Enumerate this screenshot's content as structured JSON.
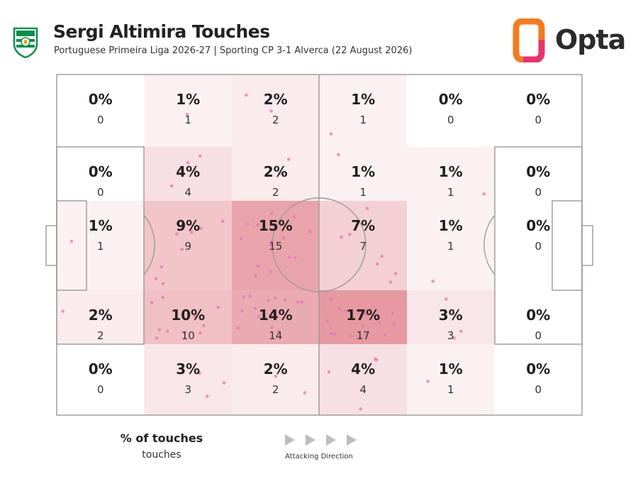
{
  "header": {
    "title": "Sergi Altimira Touches",
    "subtitle": "Portuguese Primeira Liga 2026-27 | Sporting CP 3-1 Alverca (22 August 2026)",
    "brand": "Opta"
  },
  "legend": {
    "title": "% of touches",
    "subtitle": "touches",
    "direction_label": "Attacking Direction"
  },
  "colors": {
    "heat": "#e0808a",
    "dot": "#e277b6",
    "line": "#9a9a9a",
    "brand_orange": "#f47b20",
    "brand_pink": "#e8336e",
    "club_green": "#0b8f4d"
  },
  "chart_data": {
    "type": "heatmap",
    "rows": 5,
    "cols": 6,
    "percent_labels": [
      [
        "0%",
        "1%",
        "2%",
        "1%",
        "0%",
        "0%"
      ],
      [
        "0%",
        "4%",
        "2%",
        "1%",
        "1%",
        "0%"
      ],
      [
        "1%",
        "9%",
        "15%",
        "7%",
        "1%",
        "0%"
      ],
      [
        "2%",
        "10%",
        "14%",
        "17%",
        "3%",
        "0%"
      ],
      [
        "0%",
        "3%",
        "2%",
        "4%",
        "1%",
        "0%"
      ]
    ],
    "counts": [
      [
        0,
        1,
        2,
        1,
        0,
        0
      ],
      [
        0,
        4,
        2,
        1,
        1,
        0
      ],
      [
        1,
        9,
        15,
        7,
        1,
        0
      ],
      [
        2,
        10,
        14,
        17,
        3,
        0
      ],
      [
        0,
        3,
        2,
        4,
        1,
        0
      ]
    ],
    "max_count": 17,
    "attacking_direction": "left-to-right"
  }
}
